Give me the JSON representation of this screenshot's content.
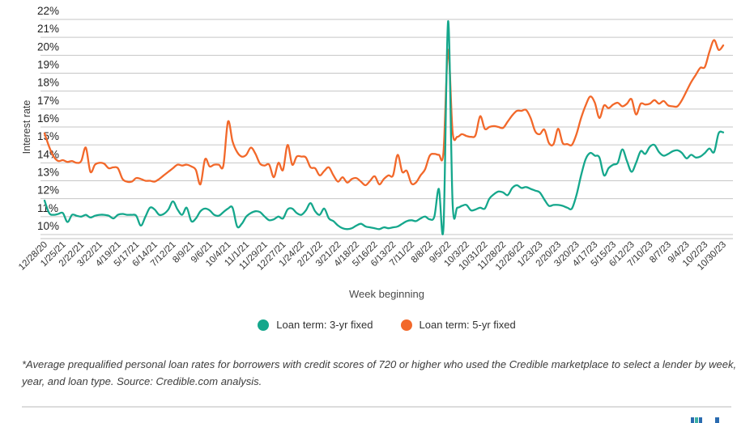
{
  "chart_data": {
    "type": "line",
    "title": "",
    "xlabel": "Week beginning",
    "ylabel": "Interest rate",
    "ylim": [
      10,
      22
    ],
    "y_ticks": [
      10,
      11,
      12,
      13,
      14,
      15,
      16,
      17,
      18,
      19,
      20,
      21,
      22
    ],
    "y_tick_suffix": "%",
    "grid": "horizontal",
    "legend_position": "bottom",
    "x_ticks_every_n_points": 4,
    "x_tick_labels": [
      "12/28/20",
      "1/25/21",
      "2/22/21",
      "3/22/21",
      "4/19/21",
      "5/17/21",
      "6/14/21",
      "7/12/21",
      "8/9/21",
      "9/6/21",
      "10/4/21",
      "11/1/21",
      "11/29/21",
      "12/27/21",
      "1/24/22",
      "2/21/22",
      "3/21/22",
      "4/18/22",
      "5/16/22",
      "6/13/22",
      "7/11/22",
      "8/8/22",
      "9/5/22",
      "10/3/22",
      "10/31/22",
      "11/28/22",
      "12/26/22",
      "1/23/23",
      "2/20/23",
      "3/20/23",
      "4/17/23",
      "5/15/23",
      "6/12/23",
      "7/10/23",
      "8/7/23",
      "9/4/23",
      "10/2/23",
      "10/30/23"
    ],
    "series": [
      {
        "name": "Loan term: 3-yr fixed",
        "color": "#15A78C",
        "values": [
          11.9,
          11.2,
          11.1,
          11.15,
          11.2,
          10.7,
          11.1,
          11.05,
          11.0,
          11.1,
          10.95,
          11.05,
          11.1,
          11.1,
          11.05,
          10.9,
          11.1,
          11.15,
          11.1,
          11.1,
          11.05,
          10.5,
          11.0,
          11.5,
          11.4,
          11.1,
          11.15,
          11.4,
          11.85,
          11.4,
          11.1,
          11.5,
          10.75,
          10.9,
          11.3,
          11.45,
          11.35,
          11.1,
          11.05,
          11.25,
          11.45,
          11.5,
          10.45,
          10.6,
          11.0,
          11.2,
          11.3,
          11.25,
          11.0,
          10.8,
          10.85,
          11.0,
          10.9,
          11.4,
          11.45,
          11.2,
          11.1,
          11.35,
          11.75,
          11.3,
          11.1,
          11.45,
          10.9,
          10.75,
          10.5,
          10.35,
          10.3,
          10.35,
          10.5,
          10.6,
          10.45,
          10.4,
          10.35,
          10.3,
          10.4,
          10.35,
          10.4,
          10.45,
          10.6,
          10.75,
          10.8,
          10.75,
          10.9,
          11.0,
          10.85,
          11.0,
          12.55,
          10.4,
          21.9,
          11.7,
          11.5,
          11.6,
          11.65,
          11.35,
          11.4,
          11.5,
          11.45,
          12.0,
          12.25,
          12.4,
          12.35,
          12.2,
          12.6,
          12.75,
          12.6,
          12.65,
          12.55,
          12.45,
          12.35,
          11.95,
          11.6,
          11.65,
          11.65,
          11.6,
          11.5,
          11.45,
          12.2,
          13.3,
          14.2,
          14.55,
          14.4,
          14.3,
          13.3,
          13.7,
          13.9,
          14.0,
          14.75,
          14.1,
          13.5,
          14.0,
          14.65,
          14.5,
          14.9,
          15.0,
          14.6,
          14.4,
          14.5,
          14.65,
          14.7,
          14.55,
          14.25,
          14.45,
          14.3,
          14.35,
          14.55,
          14.8,
          14.6,
          15.65,
          15.7
        ]
      },
      {
        "name": "Loan term: 5-yr fixed",
        "color": "#F2682A",
        "values": [
          15.65,
          14.9,
          14.35,
          14.1,
          14.15,
          14.05,
          14.1,
          14.0,
          14.1,
          14.85,
          13.5,
          13.9,
          14.0,
          13.95,
          13.7,
          13.75,
          13.7,
          13.1,
          12.95,
          12.95,
          13.15,
          13.1,
          13.0,
          13.0,
          12.95,
          13.1,
          13.3,
          13.5,
          13.7,
          13.9,
          13.85,
          13.9,
          13.8,
          13.6,
          12.8,
          14.2,
          13.8,
          13.9,
          13.9,
          13.85,
          16.3,
          15.2,
          14.6,
          14.35,
          14.45,
          14.85,
          14.5,
          13.95,
          13.85,
          13.9,
          13.2,
          14.0,
          13.6,
          15.0,
          13.9,
          14.35,
          14.35,
          14.3,
          13.75,
          13.7,
          13.3,
          13.55,
          13.75,
          13.3,
          12.95,
          13.2,
          12.9,
          13.1,
          13.15,
          12.95,
          12.75,
          13.0,
          13.25,
          12.8,
          13.1,
          13.3,
          13.3,
          14.45,
          13.5,
          13.55,
          12.85,
          12.9,
          13.3,
          13.65,
          14.4,
          14.5,
          14.45,
          14.6,
          20.3,
          15.7,
          15.45,
          15.6,
          15.5,
          15.45,
          15.55,
          16.6,
          15.9,
          16.0,
          16.05,
          16.0,
          15.95,
          16.3,
          16.65,
          16.9,
          16.9,
          16.95,
          16.5,
          15.75,
          15.6,
          15.85,
          15.1,
          15.05,
          15.9,
          15.1,
          15.05,
          15.0,
          15.6,
          16.5,
          17.2,
          17.7,
          17.35,
          16.5,
          17.2,
          17.05,
          17.25,
          17.35,
          17.15,
          17.3,
          17.55,
          16.7,
          17.3,
          17.25,
          17.3,
          17.5,
          17.3,
          17.45,
          17.2,
          17.15,
          17.15,
          17.5,
          18.0,
          18.5,
          18.9,
          19.3,
          19.35,
          20.2,
          20.85,
          20.3,
          20.55
        ]
      }
    ]
  },
  "legend": {
    "items": [
      {
        "label": "Loan term: 3-yr fixed",
        "color": "#15A78C"
      },
      {
        "label": "Loan term: 5-yr fixed",
        "color": "#F2682A"
      }
    ]
  },
  "footer": {
    "footnote": "*Average prequalified personal loan rates for borrowers with credit scores of 720 or higher who used the Credible marketplace to select a lender by week, year, and loan type. Source: Credible.com analysis.",
    "logo_colors": [
      "#2A6BB0",
      "#3CAFA4",
      "#2A6BB0",
      "#2A6BB0"
    ]
  },
  "colors": {
    "gridline": "#c6c6c6",
    "axis_line": "#bfbfbf",
    "divider": "#dcdcdc"
  }
}
